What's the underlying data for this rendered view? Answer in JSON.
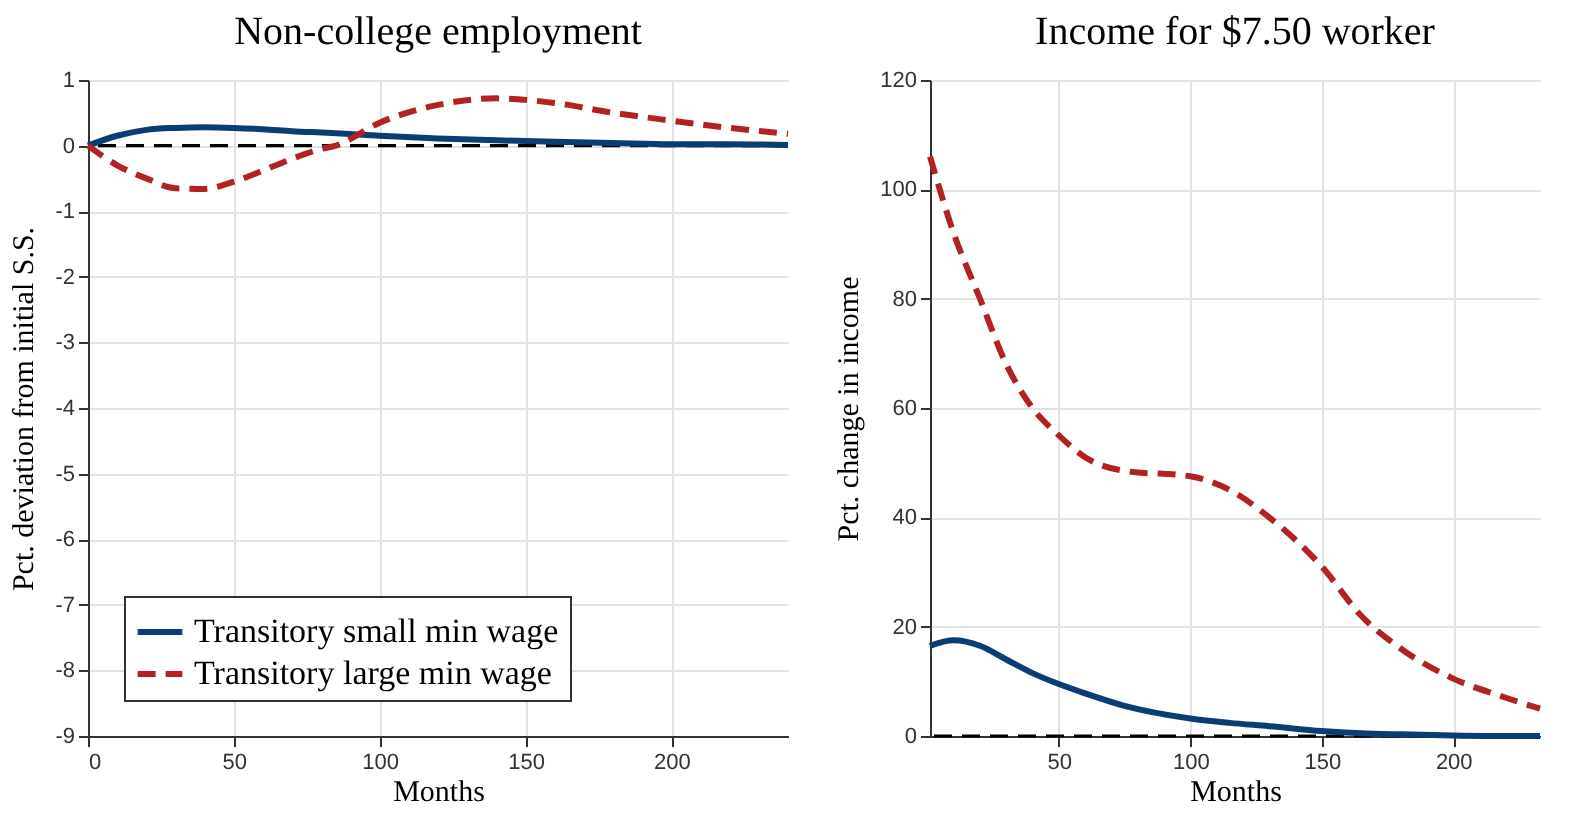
{
  "chart_data": [
    {
      "type": "line",
      "title": "Non-college employment",
      "xlabel": "Months",
      "ylabel": "Pct. deviation from initial S.S.",
      "xlim": [
        0,
        240
      ],
      "xticks": [
        0,
        50,
        100,
        150,
        200
      ],
      "ylim": [
        -9,
        1
      ],
      "yticks": [
        -9,
        -8,
        -7,
        -6,
        -5,
        -4,
        -3,
        -2,
        -1,
        0,
        1
      ],
      "grid": true,
      "legend": "bottom left",
      "ref_lines": [
        {
          "axis": "y",
          "value": 0,
          "color": "#000000",
          "line_style": "dashed"
        }
      ],
      "x": [
        0,
        10,
        20,
        30,
        40,
        50,
        60,
        70,
        80,
        85,
        100,
        120,
        140,
        160,
        180,
        200,
        220,
        240
      ],
      "series": [
        {
          "name": "Transitory small min wage",
          "color": "#0b3d73",
          "line_style": "solid",
          "values": [
            0,
            0.15,
            0.24,
            0.27,
            0.28,
            0.27,
            0.25,
            0.22,
            0.2,
            0.19,
            0.15,
            0.11,
            0.08,
            0.06,
            0.04,
            0.02,
            0.02,
            0.01
          ]
        },
        {
          "name": "Transitory large min wage",
          "color": "#b22222",
          "line_style": "dashed",
          "values": [
            0,
            -0.3,
            -0.5,
            -0.65,
            -0.66,
            -0.55,
            -0.38,
            -0.2,
            -0.05,
            0,
            0.35,
            0.62,
            0.72,
            0.65,
            0.5,
            0.38,
            0.27,
            0.18
          ]
        }
      ]
    },
    {
      "type": "line",
      "title": "Income for $7.50 worker",
      "xlabel": "Months",
      "ylabel": "Pct. change in income",
      "xlim": [
        1,
        233
      ],
      "xticks": [
        50,
        100,
        150,
        200
      ],
      "ylim": [
        0,
        120
      ],
      "yticks": [
        0,
        20,
        40,
        60,
        80,
        100,
        120
      ],
      "grid": true,
      "ref_lines": [
        {
          "axis": "y",
          "value": 0,
          "color": "#000000",
          "line_style": "dashed"
        }
      ],
      "x": [
        1,
        10,
        20,
        30,
        40,
        50,
        60,
        75,
        100,
        115,
        130,
        150,
        165,
        180,
        200,
        220,
        233
      ],
      "series": [
        {
          "color": "#0b3d73",
          "line_style": "solid",
          "values": [
            16.5,
            17.5,
            16.5,
            14,
            11.5,
            9.5,
            7.8,
            5.5,
            3.2,
            2.4,
            1.8,
            0.9,
            0.5,
            0.3,
            0.1,
            0,
            0
          ]
        },
        {
          "color": "#b22222",
          "line_style": "dashed",
          "values": [
            106,
            92,
            80,
            68,
            60,
            55,
            51,
            48.5,
            47.5,
            45,
            40,
            31,
            22,
            16,
            10.5,
            7,
            5
          ]
        }
      ]
    }
  ]
}
